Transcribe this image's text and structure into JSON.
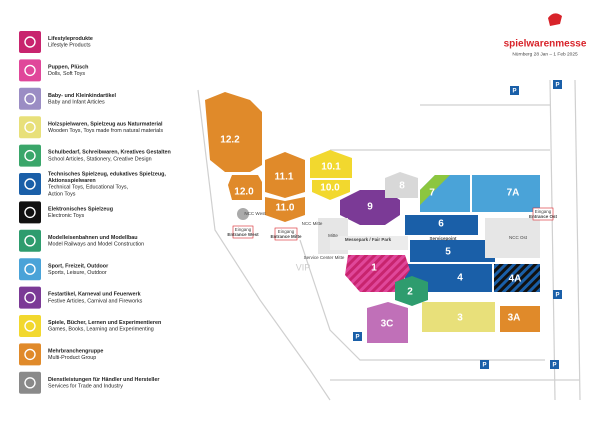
{
  "logo": {
    "brand": "spielwarenmesse",
    "dates": "Nürnberg 28 Jan – 1 Feb 2025"
  },
  "legend": [
    {
      "de": [
        "Lifestyleprodukte"
      ],
      "en": [
        "Lifestyle Products"
      ],
      "color": "#c8246e"
    },
    {
      "de": [
        "Puppen, Plüsch"
      ],
      "en": [
        "Dolls, Soft Toys"
      ],
      "color": "#e0479a"
    },
    {
      "de": [
        "Baby- und Kleinkindartikel"
      ],
      "en": [
        "Baby and Infant Articles"
      ],
      "color": "#9b8dc4"
    },
    {
      "de": [
        "Holzspielwaren, Spielzeug aus Naturmaterial"
      ],
      "en": [
        "Wooden Toys, Toys made from natural materials"
      ],
      "color": "#e8e07a"
    },
    {
      "de": [
        "Schulbedarf, Schreibwaren, Kreatives Gestalten"
      ],
      "en": [
        "School Articles, Stationery, Creative Design"
      ],
      "color": "#3aa66a"
    },
    {
      "de": [
        "Technisches Spielzeug, edukatives Spielzeug,",
        "Aktionsspielwaren"
      ],
      "en": [
        "Technical Toys, Educational Toys,",
        "Action Toys"
      ],
      "color": "#1a5fa8"
    },
    {
      "de": [
        "Elektronisches Spielzeug"
      ],
      "en": [
        "Electronic Toys"
      ],
      "color": "#111111"
    },
    {
      "de": [
        "Modelleisenbahnen und Modellbau"
      ],
      "en": [
        "Model Railways and Model Construction"
      ],
      "color": "#2e9c6e"
    },
    {
      "de": [
        "Sport, Freizeit, Outdoor"
      ],
      "en": [
        "Sports, Leisure, Outdoor"
      ],
      "color": "#4aa3d8"
    },
    {
      "de": [
        "Festartikel, Karneval und Feuerwerk"
      ],
      "en": [
        "Festive Articles, Carnival and Fireworks"
      ],
      "color": "#7b3a96"
    },
    {
      "de": [
        "Spiele, Bücher, Lernen und Experimentieren"
      ],
      "en": [
        "Games, Books, Learning and Experimenting"
      ],
      "color": "#f2d82e"
    },
    {
      "de": [
        "Mehrbranchengruppe"
      ],
      "en": [
        "Multi-Product Group"
      ],
      "color": "#e08a2a"
    },
    {
      "de": [
        "Dienstleistungen für Händler und Hersteller"
      ],
      "en": [
        "Services for Trade and Industry"
      ],
      "color": "#8a8a8a"
    }
  ],
  "halls": [
    "12.2",
    "12.0",
    "11.1",
    "11.0",
    "10.1",
    "10.0",
    "9",
    "8",
    "7",
    "7A",
    "6",
    "5",
    "4",
    "4A",
    "1",
    "2",
    "3",
    "3A",
    "3C"
  ],
  "places": {
    "ncc_west": "NCC West",
    "ncc_mitte": "NCC Mitte",
    "ncc_ost": "NCC Ost",
    "mitte": "Mitte",
    "messepark": "Messepark / Fair Park",
    "servicepoint": "Servicepoint",
    "service_center": "Service Center Mitte",
    "vip": "VIP",
    "parking": "P"
  },
  "entrances": [
    {
      "de": "Eingang",
      "en": "Entrance West"
    },
    {
      "de": "Eingang",
      "en": "Entrance Mitte"
    },
    {
      "de": "Eingang",
      "en": "Entrance Ost"
    }
  ]
}
